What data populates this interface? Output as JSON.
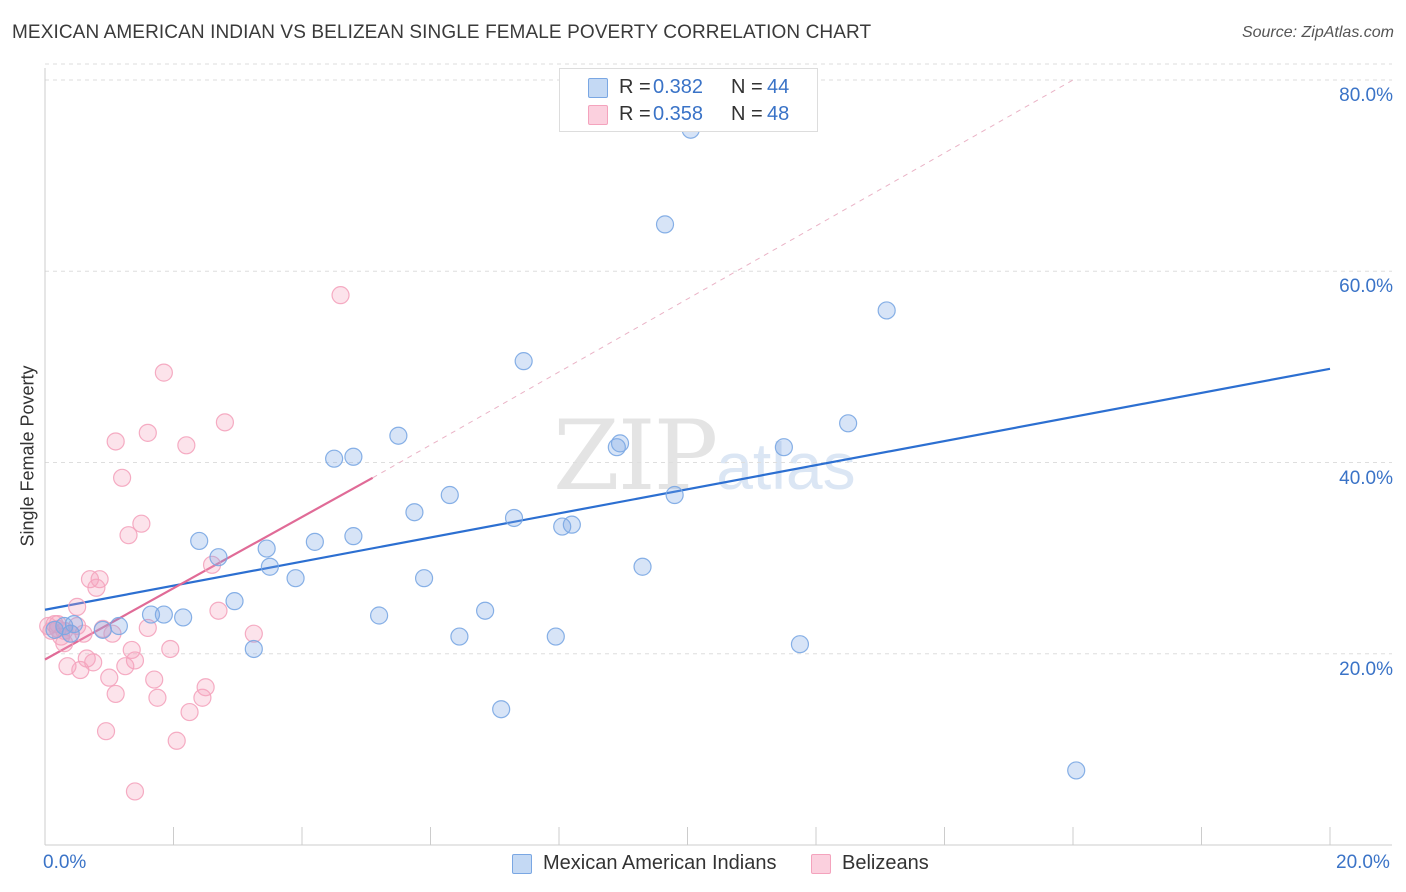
{
  "title": "MEXICAN AMERICAN INDIAN VS BELIZEAN SINGLE FEMALE POVERTY CORRELATION CHART",
  "source": "Source: ZipAtlas.com",
  "watermark": {
    "zip": "ZIP",
    "atlas": "atlas"
  },
  "legend": {
    "rows": [
      {
        "r_label": "R =",
        "r_value": "0.382",
        "n_label": "N =",
        "n_value": "44",
        "color": "#a9c8f0"
      },
      {
        "r_label": "R =",
        "r_value": "0.358",
        "n_label": "N =",
        "n_value": "48",
        "color": "#f7b8cc"
      }
    ]
  },
  "chart_data": {
    "type": "scatter",
    "title": "MEXICAN AMERICAN INDIAN VS BELIZEAN SINGLE FEMALE POVERTY CORRELATION CHART",
    "xlabel": "",
    "ylabel": "Single Female Poverty",
    "xlim": [
      0,
      20
    ],
    "ylim": [
      0,
      80
    ],
    "x_tick_labels": [
      "0.0%",
      "20.0%"
    ],
    "y_tick_labels": [
      "20.0%",
      "40.0%",
      "60.0%",
      "80.0%"
    ],
    "y_ticks": [
      20,
      40,
      60,
      80
    ],
    "grid": "horizontal dashed",
    "legend_position": "top-center",
    "series": [
      {
        "name": "Mexican American Indians",
        "color": "#7aa7e3",
        "line_color": "#2c6fd1",
        "trend": {
          "x": [
            0,
            20
          ],
          "y": [
            24.6,
            49.8
          ],
          "style": "solid"
        },
        "points": [
          [
            0.15,
            22.5
          ],
          [
            0.3,
            22.9
          ],
          [
            0.4,
            22.1
          ],
          [
            0.45,
            23.1
          ],
          [
            0.9,
            22.5
          ],
          [
            1.15,
            22.9
          ],
          [
            1.65,
            24.1
          ],
          [
            1.85,
            24.1
          ],
          [
            2.15,
            23.8
          ],
          [
            2.4,
            31.8
          ],
          [
            2.7,
            30.1
          ],
          [
            2.95,
            25.5
          ],
          [
            3.25,
            20.5
          ],
          [
            3.45,
            31.0
          ],
          [
            3.5,
            29.1
          ],
          [
            3.9,
            27.9
          ],
          [
            4.2,
            31.7
          ],
          [
            4.5,
            40.4
          ],
          [
            4.8,
            40.6
          ],
          [
            4.8,
            32.3
          ],
          [
            5.2,
            24.0
          ],
          [
            5.5,
            42.8
          ],
          [
            5.75,
            34.8
          ],
          [
            5.9,
            27.9
          ],
          [
            6.3,
            36.6
          ],
          [
            6.45,
            21.8
          ],
          [
            6.85,
            24.5
          ],
          [
            7.1,
            14.2
          ],
          [
            7.3,
            34.2
          ],
          [
            7.45,
            50.6
          ],
          [
            7.95,
            21.8
          ],
          [
            8.05,
            33.3
          ],
          [
            8.2,
            33.5
          ],
          [
            8.9,
            41.6
          ],
          [
            8.95,
            42.0
          ],
          [
            9.3,
            29.1
          ],
          [
            9.65,
            64.9
          ],
          [
            9.8,
            36.6
          ],
          [
            10.05,
            74.8
          ],
          [
            11.5,
            41.6
          ],
          [
            11.75,
            21.0
          ],
          [
            12.5,
            44.1
          ],
          [
            13.1,
            55.9
          ],
          [
            16.05,
            7.8
          ]
        ]
      },
      {
        "name": "Belizeans",
        "color": "#f4a3bd",
        "line_color": "#e06b97",
        "trend": {
          "x": [
            0,
            5.1
          ],
          "y": [
            19.4,
            38.4
          ],
          "style": "solid",
          "extend_to": {
            "x": [
              5.1,
              16.0
            ],
            "y": [
              38.4,
              80.0
            ],
            "style": "dashed"
          }
        },
        "points": [
          [
            0.1,
            22.4
          ],
          [
            0.15,
            23.1
          ],
          [
            0.2,
            22.6
          ],
          [
            0.25,
            21.8
          ],
          [
            0.3,
            22.4
          ],
          [
            0.3,
            21.1
          ],
          [
            0.35,
            18.7
          ],
          [
            0.4,
            22.1
          ],
          [
            0.5,
            22.9
          ],
          [
            0.5,
            24.9
          ],
          [
            0.55,
            18.3
          ],
          [
            0.6,
            22.1
          ],
          [
            0.65,
            19.5
          ],
          [
            0.7,
            27.8
          ],
          [
            0.75,
            19.1
          ],
          [
            0.8,
            26.9
          ],
          [
            0.85,
            27.8
          ],
          [
            0.9,
            22.6
          ],
          [
            0.95,
            11.9
          ],
          [
            1.0,
            17.5
          ],
          [
            1.05,
            22.1
          ],
          [
            1.1,
            42.2
          ],
          [
            1.1,
            15.8
          ],
          [
            1.2,
            38.4
          ],
          [
            1.25,
            18.7
          ],
          [
            1.3,
            32.4
          ],
          [
            1.35,
            20.4
          ],
          [
            1.4,
            19.3
          ],
          [
            1.4,
            5.6
          ],
          [
            1.5,
            33.6
          ],
          [
            1.6,
            22.7
          ],
          [
            1.6,
            43.1
          ],
          [
            1.7,
            17.3
          ],
          [
            1.75,
            15.4
          ],
          [
            1.85,
            49.4
          ],
          [
            1.95,
            20.5
          ],
          [
            2.05,
            10.9
          ],
          [
            2.2,
            41.8
          ],
          [
            2.25,
            13.9
          ],
          [
            2.45,
            15.4
          ],
          [
            2.5,
            16.5
          ],
          [
            2.6,
            29.3
          ],
          [
            2.7,
            24.5
          ],
          [
            2.8,
            44.2
          ],
          [
            3.25,
            22.1
          ],
          [
            4.6,
            57.5
          ],
          [
            0.05,
            22.9
          ],
          [
            0.2,
            23.1
          ]
        ]
      }
    ]
  },
  "bottom_legend": [
    {
      "label": "Mexican American Indians",
      "color": "#a9c8f0"
    },
    {
      "label": "Belizeans",
      "color": "#f7b8cc"
    }
  ]
}
